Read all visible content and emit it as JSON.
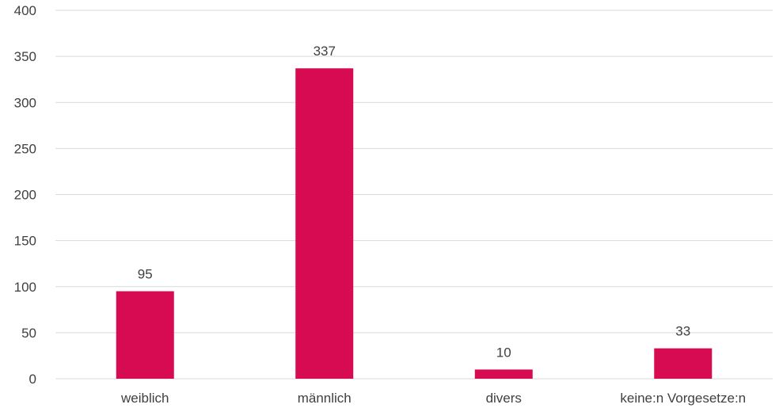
{
  "chart_data": {
    "type": "bar",
    "title": "",
    "xlabel": "",
    "ylabel": "",
    "categories": [
      "weiblich",
      "männlich",
      "divers",
      "keine:n Vorgesetze:n"
    ],
    "values": [
      95,
      337,
      10,
      33
    ],
    "data_labels": [
      "95",
      "337",
      "10",
      "33"
    ],
    "ylim": [
      0,
      400
    ],
    "yticks": [
      0,
      50,
      100,
      150,
      200,
      250,
      300,
      350,
      400
    ],
    "grid": true,
    "legend": "none",
    "bar_color": "#d60b52",
    "grid_color": "#d9d9d9",
    "text_color": "#404040"
  }
}
